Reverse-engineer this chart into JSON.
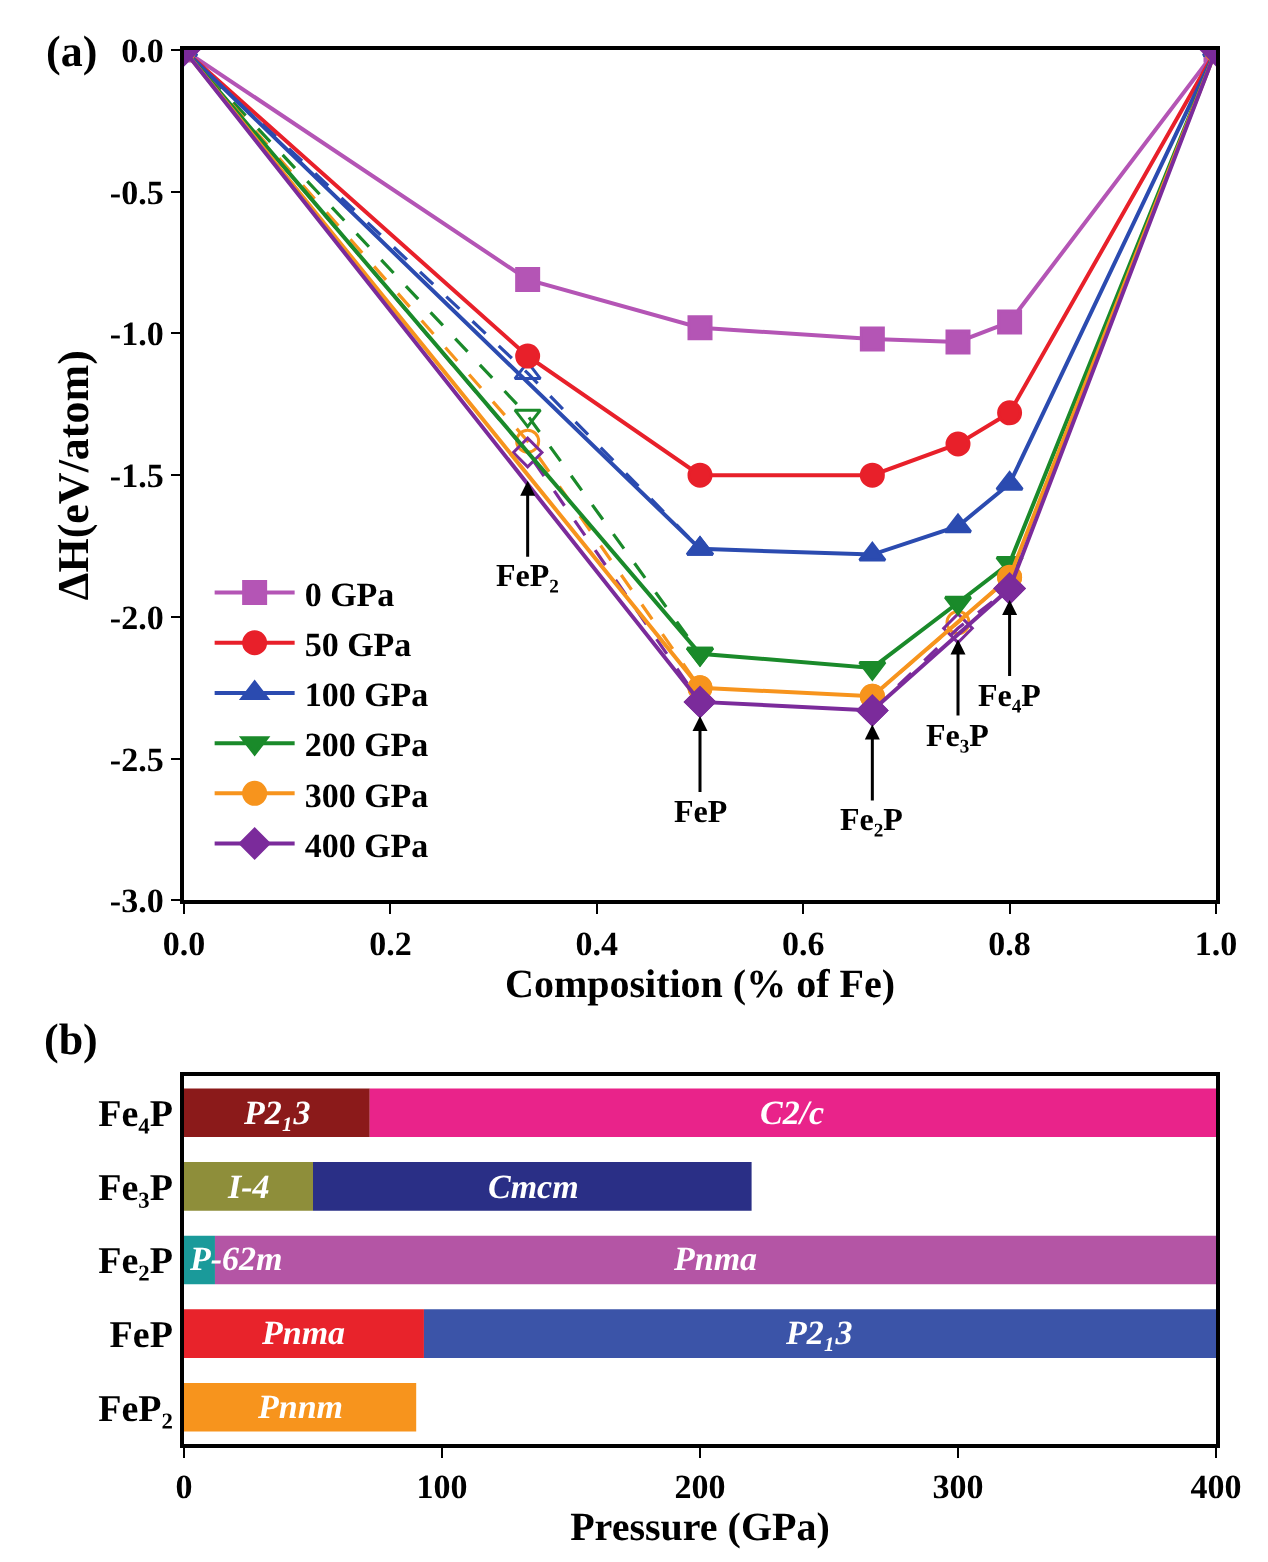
{
  "chart_data": [
    {
      "type": "line",
      "title": "(a)",
      "xlabel": "Composition (% of Fe)",
      "ylabel": "ΔH(eV/atom)",
      "xlim": [
        0,
        1
      ],
      "xticks": [
        {
          "value": 0,
          "label": "0.0"
        },
        {
          "value": 0.2,
          "label": "0.2"
        },
        {
          "value": 0.4,
          "label": "0.4"
        },
        {
          "value": 0.6,
          "label": "0.6"
        },
        {
          "value": 0.8,
          "label": "0.8"
        },
        {
          "value": 1,
          "label": "1.0"
        }
      ],
      "ylim": [
        -3,
        0
      ],
      "yticks": [
        {
          "value": -3,
          "label": "-3.0"
        },
        {
          "value": -2.5,
          "label": "-2.5"
        },
        {
          "value": -2,
          "label": "-2.0"
        },
        {
          "value": -1.5,
          "label": "-1.5"
        },
        {
          "value": -1,
          "label": "-1.0"
        },
        {
          "value": -0.5,
          "label": "-0.5"
        },
        {
          "value": 0,
          "label": "0.0"
        }
      ],
      "legend": "bottom left",
      "series": [
        {
          "color": "#2b4bb0",
          "marker": "triangle",
          "line_style": "dashed",
          "x": [
            0,
            0.333,
            0.5
          ],
          "values": [
            0,
            -1.14,
            -1.76
          ]
        },
        {
          "color": "#1a8a2a",
          "marker": "triangle-down",
          "line_style": "dashed",
          "x": [
            0,
            0.333,
            0.5
          ],
          "values": [
            0,
            -1.29,
            -2.13
          ]
        },
        {
          "color": "#f7941d",
          "marker": "circle",
          "line_style": "dashed",
          "x": [
            0,
            0.333,
            0.5
          ],
          "values": [
            0,
            -1.38,
            -2.25
          ]
        },
        {
          "color": "#f7941d",
          "marker": "circle",
          "line_style": "dashed",
          "x": [
            0.667,
            0.75,
            0.8
          ],
          "values": [
            -2.28,
            -2.02,
            -1.86
          ]
        },
        {
          "color": "#7b2b9b",
          "marker": "diamond",
          "line_style": "dashed",
          "x": [
            0,
            0.333,
            0.5
          ],
          "values": [
            0,
            -1.42,
            -2.3
          ]
        },
        {
          "color": "#7b2b9b",
          "marker": "diamond",
          "line_style": "dashed",
          "x": [
            0.667,
            0.75,
            0.8
          ],
          "values": [
            -2.33,
            -2.04,
            -1.9
          ]
        },
        {
          "name": "0 GPa",
          "color": "#b455b5",
          "marker": "square",
          "line_style": "solid",
          "x": [
            0,
            0.333,
            0.5,
            0.667,
            0.75,
            0.8,
            1
          ],
          "values": [
            0,
            -0.81,
            -0.98,
            -1.02,
            -1.03,
            -0.96,
            0
          ]
        },
        {
          "name": "50 GPa",
          "color": "#e8202a",
          "marker": "circle",
          "line_style": "solid",
          "x": [
            0,
            0.333,
            0.5,
            0.667,
            0.75,
            0.8,
            1
          ],
          "values": [
            0,
            -1.08,
            -1.5,
            -1.5,
            -1.39,
            -1.28,
            0
          ]
        },
        {
          "name": "100 GPa",
          "color": "#2b4bb0",
          "marker": "triangle",
          "line_style": "solid",
          "x": [
            0,
            0.5,
            0.667,
            0.75,
            0.8,
            1
          ],
          "values": [
            0,
            -1.76,
            -1.78,
            -1.68,
            -1.53,
            0
          ]
        },
        {
          "name": "200 GPa",
          "color": "#1a8a2a",
          "marker": "triangle-down",
          "line_style": "solid",
          "x": [
            0,
            0.5,
            0.667,
            0.75,
            0.8,
            1
          ],
          "values": [
            0,
            -2.13,
            -2.18,
            -1.95,
            -1.81,
            0
          ]
        },
        {
          "name": "300 GPa",
          "color": "#f7941d",
          "marker": "circle",
          "line_style": "solid",
          "x": [
            0,
            0.5,
            0.667,
            0.8,
            1
          ],
          "values": [
            0,
            -2.25,
            -2.28,
            -1.86,
            0
          ]
        },
        {
          "name": "400 GPa",
          "color": "#7b2b9b",
          "marker": "diamond",
          "line_style": "solid",
          "x": [
            0,
            0.5,
            0.667,
            0.8,
            1
          ],
          "values": [
            0,
            -2.3,
            -2.33,
            -1.9,
            0
          ]
        }
      ],
      "annotations": [
        {
          "text": "FeP₂",
          "x": 0.333,
          "y": -1.52
        },
        {
          "text": "FeP",
          "x": 0.5,
          "y": -2.35
        },
        {
          "text": "Fe₂P",
          "x": 0.667,
          "y": -2.38
        },
        {
          "text": "Fe₃P",
          "x": 0.75,
          "y": -2.08
        },
        {
          "text": "Fe₄P",
          "x": 0.8,
          "y": -1.94
        }
      ]
    },
    {
      "type": "bar",
      "orientation": "horizontal",
      "stacked": true,
      "title": "(b)",
      "xlabel": "Pressure (GPa)",
      "categories": [
        "Fe₄P",
        "Fe₃P",
        "Fe₂P",
        "FeP",
        "FeP₂"
      ],
      "xlim": [
        0,
        400
      ],
      "xticks": [
        0,
        100,
        200,
        300,
        400
      ],
      "series": [
        {
          "values": [
            72,
            50,
            12,
            93,
            90
          ],
          "colors": [
            "#8b1a1a",
            "#8e8e3a",
            "#1a9a9a",
            "#e8232b",
            "#f7941d"
          ],
          "value_labels": [
            "P2₁3",
            "I-4",
            "P-62m",
            "Pnma",
            "Pnnm"
          ]
        },
        {
          "values": [
            328,
            170,
            388,
            307,
            null
          ],
          "colors": [
            "#e9238a",
            "#2a2f86",
            "#b455a5",
            "#3b54a8",
            null
          ],
          "value_labels": [
            "C2/c",
            "Cmcm",
            "Pnma",
            "P2₁3",
            null
          ]
        }
      ]
    }
  ]
}
